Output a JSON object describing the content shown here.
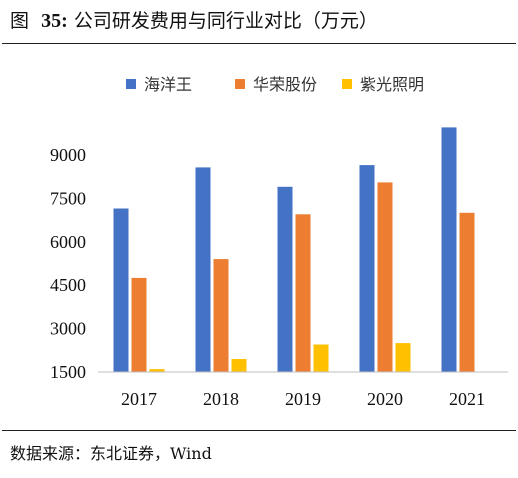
{
  "figure": {
    "label": "图",
    "number": "35:",
    "title": "公司研发费用与同行业对比（万元）"
  },
  "source": "数据来源：东北证券，Wind",
  "colors": {
    "series": [
      "#4472C4",
      "#ED7D31",
      "#FFC000"
    ],
    "axis": "#BFBFBF"
  },
  "chart_data": {
    "type": "bar",
    "title": "公司研发费用与同行业对比（万元）",
    "categories": [
      "2017",
      "2018",
      "2019",
      "2020",
      "2021"
    ],
    "series": [
      {
        "name": "海洋王",
        "values": [
          7150,
          8570,
          7900,
          8650,
          9950
        ]
      },
      {
        "name": "华荣股份",
        "values": [
          4750,
          5400,
          6950,
          8050,
          7000
        ]
      },
      {
        "name": "紫光照明",
        "values": [
          1600,
          1950,
          2450,
          2500,
          null
        ]
      }
    ],
    "yticks": [
      1500,
      3000,
      4500,
      6000,
      7500,
      9000
    ],
    "ylim": [
      1500,
      10000
    ],
    "xlabel": "",
    "ylabel": "",
    "grid": false,
    "legend": "top"
  }
}
